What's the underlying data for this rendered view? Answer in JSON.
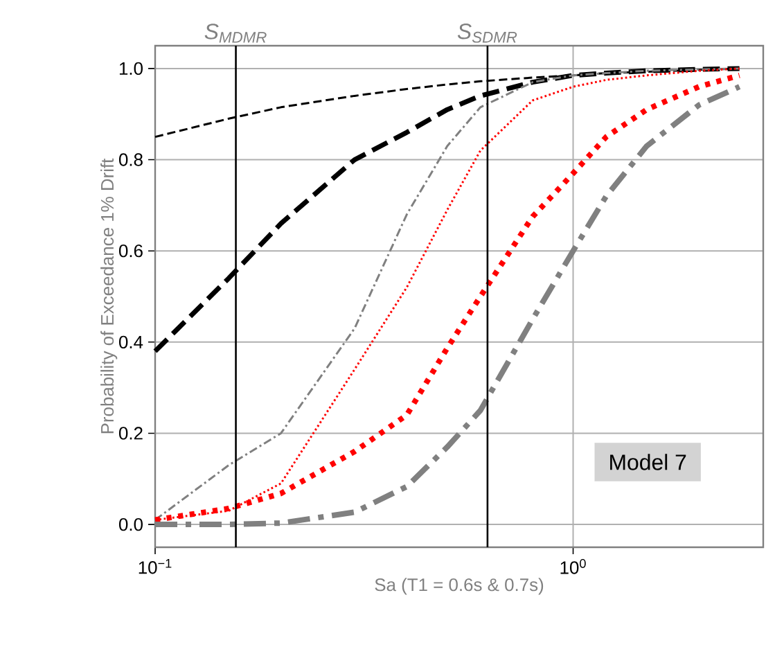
{
  "chart_data": {
    "type": "line",
    "xlabel": "Sa (T1 = 0.6s & 0.7s)",
    "ylabel": "Probability of Exceedance 1% Drift",
    "log": "x",
    "grid": true,
    "marker": "none",
    "xlim": [
      0.1,
      2.85
    ],
    "ylim": [
      -0.05,
      1.05
    ],
    "xticks": [
      {
        "value": 0.1,
        "label": "10$^{−1}$"
      },
      {
        "value": 1,
        "label": "10$^{0}$"
      }
    ],
    "yticks": [
      {
        "value": 0,
        "label": "0.0"
      },
      {
        "value": 0.2,
        "label": "0.2"
      },
      {
        "value": 0.4,
        "label": "0.4"
      },
      {
        "value": 0.6,
        "label": "0.6"
      },
      {
        "value": 0.8,
        "label": "0.8"
      },
      {
        "value": 1,
        "label": "1.0"
      }
    ],
    "x": [
      0.1,
      0.15,
      0.2,
      0.3,
      0.4,
      0.5,
      0.6,
      0.8,
      1.0,
      1.2,
      1.5,
      2.0,
      2.5
    ],
    "series": [
      {
        "color": "#000000",
        "line_style": "dashed",
        "values": [
          0.85,
          0.89,
          0.915,
          0.94,
          0.955,
          0.965,
          0.972,
          0.98,
          0.985,
          0.99,
          0.993,
          0.997,
          1.0
        ]
      },
      {
        "color": "#000000",
        "line_style": "dashed",
        "values": [
          0.38,
          0.54,
          0.66,
          0.8,
          0.86,
          0.91,
          0.94,
          0.97,
          0.985,
          0.99,
          0.995,
          0.998,
          1.0
        ]
      },
      {
        "color": "#808080",
        "line_style": "dashdot",
        "values": [
          0.01,
          0.13,
          0.2,
          0.43,
          0.68,
          0.83,
          0.915,
          0.97,
          0.985,
          0.99,
          0.995,
          0.998,
          1.0
        ]
      },
      {
        "color": "#ff0000",
        "line_style": "dotted",
        "values": [
          0.01,
          0.03,
          0.09,
          0.34,
          0.52,
          0.69,
          0.82,
          0.93,
          0.96,
          0.975,
          0.985,
          0.995,
          1.0
        ]
      },
      {
        "color": "#ff0000",
        "line_style": "dotted",
        "values": [
          0.01,
          0.035,
          0.068,
          0.16,
          0.24,
          0.387,
          0.5,
          0.675,
          0.77,
          0.85,
          0.91,
          0.96,
          0.985
        ]
      },
      {
        "color": "#808080",
        "line_style": "dashdot",
        "values": [
          0.0,
          0.0,
          0.003,
          0.027,
          0.083,
          0.17,
          0.25,
          0.45,
          0.6,
          0.72,
          0.83,
          0.92,
          0.96
        ]
      }
    ],
    "ref_lines": [
      {
        "axis": "x",
        "value": 0.156,
        "label": "S$_{MDMR}$",
        "color": "#000000"
      },
      {
        "axis": "x",
        "value": 0.624,
        "label": "S$_{SDMR}$",
        "color": "#000000"
      }
    ],
    "annotations": [
      "Model 7"
    ]
  }
}
